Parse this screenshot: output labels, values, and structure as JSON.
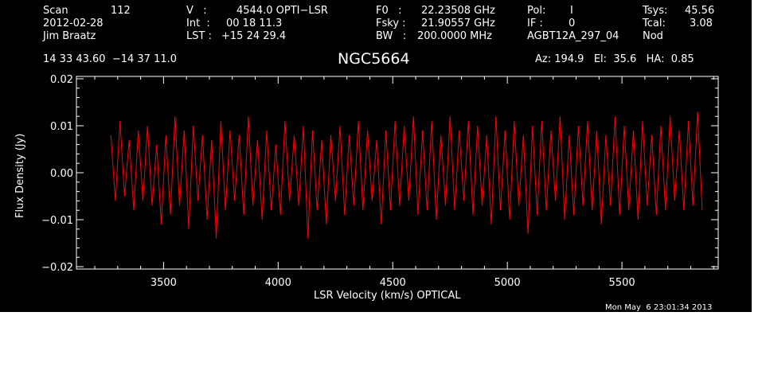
{
  "header": {
    "col1": {
      "scan_label": "Scan",
      "scan_value": "112",
      "date": "2012-02-28",
      "observer": "Jim Braatz",
      "coords": "14 33 43.60  −14 37 11.0"
    },
    "col2": {
      "v_label": "V   :",
      "v_value": "4544.0 OPTI−LSR",
      "int_label": "Int  :",
      "int_value": "00 18 11.3",
      "lst_label": "LST :",
      "lst_value": "+15 24 29.4"
    },
    "col3": {
      "f0_label": "F0   :",
      "f0_value": "22.23508 GHz",
      "fsky_label": "Fsky :",
      "fsky_value": "21.90557 GHz",
      "bw_label": "BW   :",
      "bw_value": "200.0000 MHz"
    },
    "col4": {
      "pol_label": "Pol:",
      "pol_value": "I",
      "if_label": "IF :",
      "if_value": "0",
      "project": "AGBT12A_297_04"
    },
    "col5": {
      "tsys_label": "Tsys:",
      "tsys_value": "45.56",
      "tcal_label": "Tcal:",
      "tcal_value": "3.08",
      "mode": "Nod"
    },
    "source": "NGC5664",
    "pointing": "Az: 194.9   El:  35.6   HA:  0.85",
    "timestamp": "Mon May  6 23:01:34 2013"
  },
  "colors": {
    "background": "#000000",
    "axes": "#ffffff",
    "trace": "#ff0000",
    "page": "#ffffff"
  },
  "chart_data": {
    "type": "line",
    "title": "NGC5664",
    "xlabel": "LSR Velocity (km/s) OPTICAL",
    "ylabel": "Flux Density (Jy)",
    "xlim": [
      3120,
      5920
    ],
    "ylim": [
      -0.0205,
      0.0205
    ],
    "xticks": [
      3500,
      4000,
      4500,
      5000,
      5500
    ],
    "xtick_labels": [
      "3500",
      "4000",
      "4500",
      "5000",
      "5500"
    ],
    "yticks": [
      -0.02,
      -0.01,
      0.0,
      0.01,
      0.02
    ],
    "ytick_labels": [
      "−0.02",
      "−0.01",
      "0.00",
      "0.01",
      "0.02"
    ],
    "grid": false,
    "series": [
      {
        "color": "#ff0000",
        "x": [
          3270,
          3290,
          3310,
          3330,
          3350,
          3370,
          3390,
          3410,
          3430,
          3450,
          3470,
          3490,
          3510,
          3530,
          3550,
          3570,
          3590,
          3610,
          3630,
          3650,
          3670,
          3690,
          3710,
          3730,
          3750,
          3770,
          3790,
          3810,
          3830,
          3850,
          3870,
          3890,
          3910,
          3930,
          3950,
          3970,
          3990,
          4010,
          4030,
          4050,
          4070,
          4090,
          4110,
          4130,
          4150,
          4170,
          4190,
          4210,
          4230,
          4250,
          4270,
          4290,
          4310,
          4330,
          4350,
          4370,
          4390,
          4410,
          4430,
          4450,
          4470,
          4490,
          4510,
          4530,
          4550,
          4570,
          4590,
          4610,
          4630,
          4650,
          4670,
          4690,
          4710,
          4730,
          4750,
          4770,
          4790,
          4810,
          4830,
          4850,
          4870,
          4890,
          4910,
          4930,
          4950,
          4970,
          4990,
          5010,
          5030,
          5050,
          5070,
          5090,
          5110,
          5130,
          5150,
          5170,
          5190,
          5210,
          5230,
          5250,
          5270,
          5290,
          5310,
          5330,
          5350,
          5370,
          5390,
          5410,
          5430,
          5450,
          5470,
          5490,
          5510,
          5530,
          5550,
          5570,
          5590,
          5610,
          5630,
          5650,
          5670,
          5690,
          5710,
          5730,
          5750,
          5770,
          5790,
          5810,
          5830,
          5850
        ],
        "y": [
          0.008,
          -0.006,
          0.011,
          -0.005,
          0.007,
          -0.008,
          0.009,
          -0.006,
          0.01,
          -0.007,
          0.006,
          -0.011,
          0.008,
          -0.009,
          0.012,
          -0.007,
          0.009,
          -0.012,
          0.01,
          -0.006,
          0.008,
          -0.01,
          0.007,
          -0.014,
          0.011,
          -0.008,
          0.009,
          -0.006,
          0.008,
          -0.009,
          0.012,
          -0.007,
          0.007,
          -0.01,
          0.009,
          -0.008,
          0.006,
          -0.009,
          0.011,
          -0.006,
          0.008,
          -0.007,
          0.01,
          -0.014,
          0.009,
          -0.008,
          0.007,
          -0.011,
          0.008,
          -0.006,
          0.01,
          -0.009,
          0.008,
          -0.007,
          0.011,
          -0.008,
          0.009,
          -0.006,
          0.007,
          -0.011,
          0.009,
          -0.008,
          0.011,
          -0.007,
          0.01,
          -0.006,
          0.012,
          -0.009,
          0.009,
          -0.008,
          0.011,
          -0.01,
          0.008,
          -0.007,
          0.012,
          -0.008,
          0.009,
          -0.006,
          0.011,
          -0.009,
          0.01,
          -0.007,
          0.008,
          -0.011,
          0.012,
          -0.008,
          0.009,
          -0.01,
          0.011,
          -0.007,
          0.008,
          -0.013,
          0.01,
          -0.009,
          0.011,
          -0.008,
          0.009,
          -0.006,
          0.012,
          -0.01,
          0.008,
          -0.009,
          0.01,
          -0.007,
          0.011,
          -0.008,
          0.009,
          -0.011,
          0.008,
          -0.007,
          0.012,
          -0.009,
          0.01,
          -0.008,
          0.009,
          -0.01,
          0.011,
          -0.007,
          0.008,
          -0.009,
          0.01,
          -0.008,
          0.012,
          -0.006,
          0.009,
          -0.008,
          0.011,
          -0.007,
          0.013,
          -0.008
        ]
      }
    ]
  }
}
